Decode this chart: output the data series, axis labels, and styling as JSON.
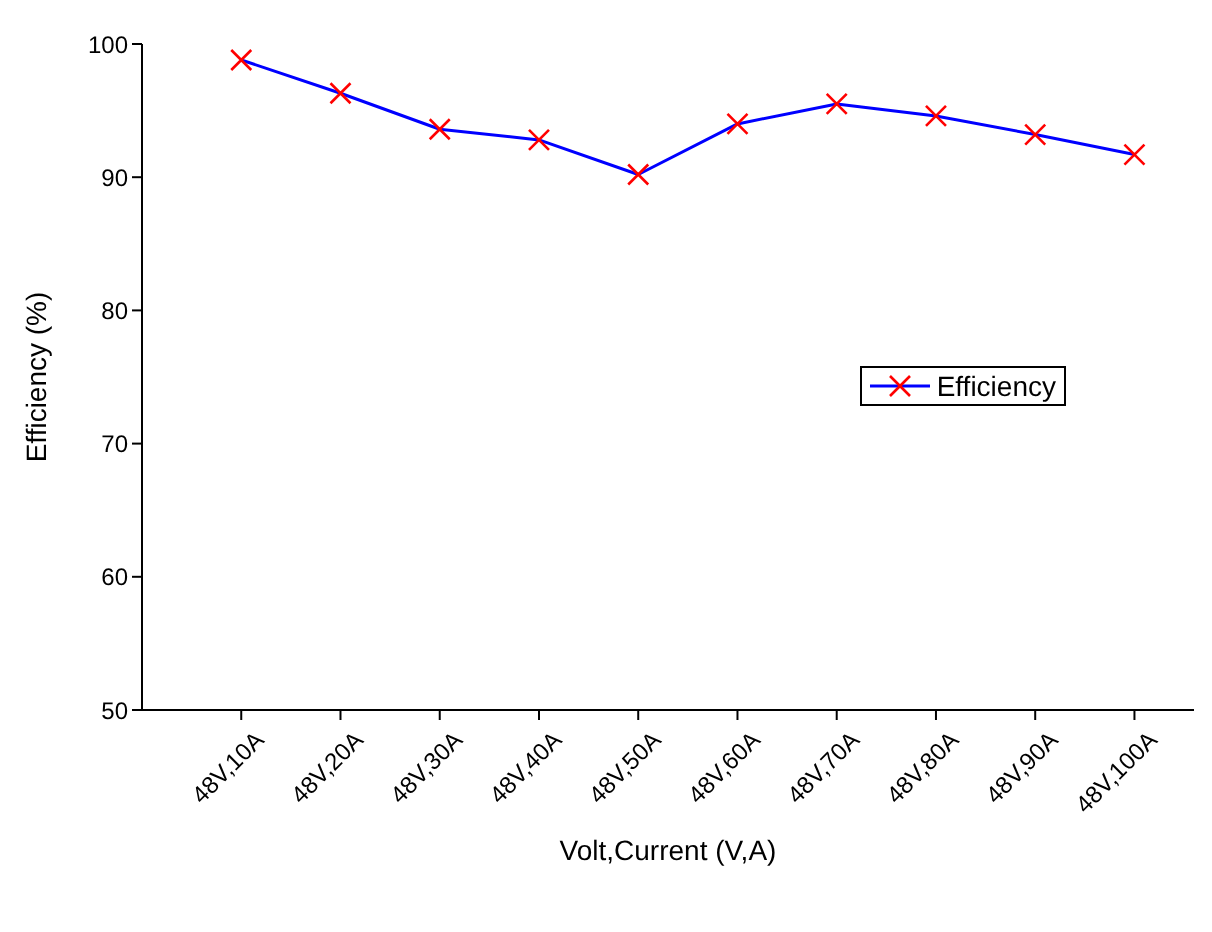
{
  "chart_data": {
    "type": "line",
    "xlabel": "Volt,Current (V,A)",
    "ylabel": "Efficiency (%)",
    "categories": [
      "48V,10A",
      "48V,20A",
      "48V,30A",
      "48V,40A",
      "48V,50A",
      "48V,60A",
      "48V,70A",
      "48V,80A",
      "48V,90A",
      "48V,100A"
    ],
    "series": [
      {
        "name": "Efficiency",
        "color": "#0000ff",
        "colors": [
          "#ff0000",
          "#ff0000",
          "#ff0000",
          "#ff0000",
          "#ff0000",
          "#ff0000",
          "#ff0000",
          "#ff0000",
          "#ff0000",
          "#ff0000"
        ],
        "values": [
          98.8,
          96.3,
          93.6,
          92.8,
          90.2,
          94.0,
          95.5,
          94.6,
          93.2,
          91.7
        ]
      }
    ],
    "ylim": [
      50,
      100
    ],
    "yticks": [
      50,
      60,
      70,
      80,
      90,
      100
    ],
    "grid": false,
    "legend": "right",
    "marker": "cross",
    "line_style": "solid"
  }
}
